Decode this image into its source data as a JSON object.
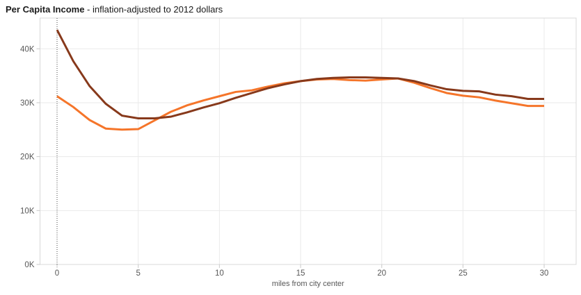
{
  "title": {
    "bold": "Per Capita Income",
    "rest": " - inflation-adjusted to 2012 dollars"
  },
  "chart_data": {
    "type": "line",
    "title": "Per Capita Income - inflation-adjusted to 2012 dollars",
    "xlabel": "miles from city center",
    "ylabel": "",
    "legend": "none",
    "grid": true,
    "x": [
      0,
      1,
      2,
      3,
      4,
      5,
      6,
      7,
      8,
      9,
      10,
      11,
      12,
      13,
      14,
      15,
      16,
      17,
      18,
      19,
      20,
      21,
      22,
      23,
      24,
      25,
      26,
      27,
      28,
      29,
      30
    ],
    "series": [
      {
        "name": "dark-brown-line",
        "color": "#87391B",
        "values": [
          43500,
          37700,
          33100,
          29800,
          27600,
          27100,
          27100,
          27400,
          28200,
          29100,
          29900,
          30900,
          31800,
          32700,
          33400,
          34000,
          34400,
          34600,
          34700,
          34700,
          34600,
          34500,
          34000,
          33200,
          32500,
          32200,
          32100,
          31500,
          31200,
          30700,
          30700
        ]
      },
      {
        "name": "orange-line",
        "color": "#F5752A",
        "values": [
          31200,
          29200,
          26800,
          25200,
          25000,
          25100,
          26700,
          28300,
          29500,
          30400,
          31200,
          32000,
          32300,
          33000,
          33600,
          34000,
          34300,
          34400,
          34200,
          34100,
          34300,
          34500,
          33700,
          32700,
          31800,
          31300,
          31000,
          30400,
          29900,
          29400,
          29400
        ]
      }
    ],
    "xticks": {
      "values": [
        0,
        5,
        10,
        15,
        20,
        25,
        30
      ],
      "labels": [
        "0",
        "5",
        "10",
        "15",
        "20",
        "25",
        "30"
      ]
    },
    "yticks": {
      "values": [
        0,
        10000,
        20000,
        30000,
        40000
      ],
      "labels": [
        "0K",
        "10K",
        "20K",
        "30K",
        "40K"
      ]
    },
    "xlim": [
      -1.05,
      31.97
    ],
    "ylim": [
      0,
      45700
    ],
    "zero_reference_line": {
      "x": 0,
      "style": "dotted",
      "color": "#444444"
    },
    "colors": {
      "grid": "#eaeaea",
      "border": "#d8d8d8",
      "tick": "#c9c9c9",
      "label": "#575757",
      "title": "#1a1a1a"
    }
  }
}
